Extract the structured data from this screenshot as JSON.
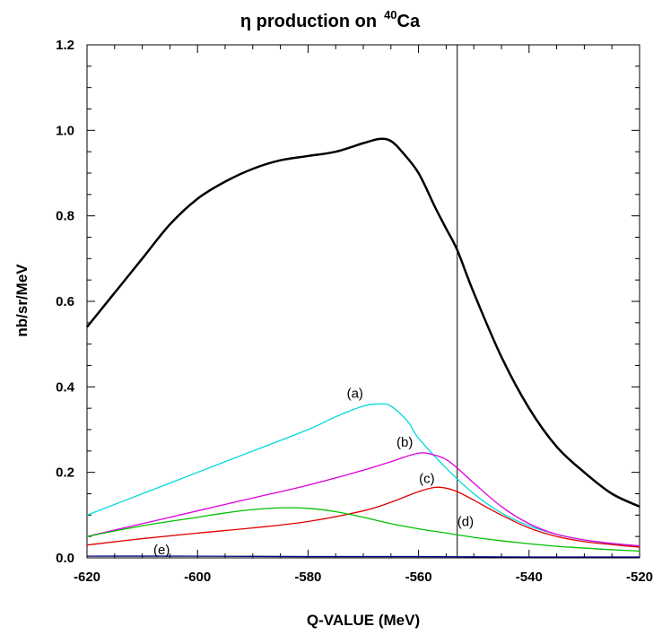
{
  "chart_data": {
    "type": "line",
    "title": {
      "prefix": "η production on",
      "superscript": "40",
      "nucleus": "Ca"
    },
    "xlabel": "Q-VALUE (MeV)",
    "ylabel": "nb/sr/MeV",
    "xlim": [
      -620,
      -520
    ],
    "ylim": [
      0,
      1.2
    ],
    "xticks": [
      -620,
      -600,
      -580,
      -560,
      -540,
      -520
    ],
    "xtick_labels": [
      "-620",
      "-600",
      "-580",
      "-560",
      "-540",
      "-520"
    ],
    "yticks": [
      0,
      0.2,
      0.4,
      0.6,
      0.8,
      1.0,
      1.2
    ],
    "ytick_labels": [
      "0.0",
      "0.2",
      "0.4",
      "0.6",
      "0.8",
      "1.0",
      "1.2"
    ],
    "vertical_line_x": -553,
    "grid": false,
    "series": [
      {
        "key": "total",
        "label": "",
        "color": "#000000",
        "x": [
          -620,
          -615,
          -610,
          -605,
          -600,
          -595,
          -590,
          -585,
          -580,
          -575,
          -570,
          -567,
          -565,
          -563,
          -560,
          -557,
          -555,
          -553,
          -550,
          -545,
          -540,
          -535,
          -530,
          -525,
          -520
        ],
        "y": [
          0.54,
          0.62,
          0.7,
          0.78,
          0.84,
          0.88,
          0.91,
          0.93,
          0.94,
          0.95,
          0.97,
          0.98,
          0.975,
          0.95,
          0.9,
          0.82,
          0.77,
          0.72,
          0.62,
          0.47,
          0.35,
          0.26,
          0.2,
          0.15,
          0.12
        ]
      },
      {
        "key": "a",
        "label": "(a)",
        "color": "#00d8dc",
        "x": [
          -620,
          -610,
          -600,
          -590,
          -580,
          -575,
          -570,
          -567,
          -565,
          -562,
          -560,
          -555,
          -550,
          -545,
          -540,
          -535,
          -530,
          -525,
          -520
        ],
        "y": [
          0.1,
          0.15,
          0.2,
          0.25,
          0.3,
          0.33,
          0.355,
          0.36,
          0.355,
          0.32,
          0.28,
          0.21,
          0.15,
          0.105,
          0.075,
          0.055,
          0.042,
          0.033,
          0.026
        ]
      },
      {
        "key": "b",
        "label": "(b)",
        "color": "#dd00dd",
        "x": [
          -620,
          -610,
          -600,
          -590,
          -580,
          -570,
          -565,
          -560,
          -557,
          -555,
          -553,
          -550,
          -545,
          -540,
          -535,
          -530,
          -525,
          -520
        ],
        "y": [
          0.05,
          0.08,
          0.11,
          0.14,
          0.17,
          0.205,
          0.225,
          0.245,
          0.24,
          0.23,
          0.21,
          0.175,
          0.12,
          0.08,
          0.055,
          0.042,
          0.034,
          0.028
        ]
      },
      {
        "key": "c",
        "label": "(c)",
        "color": "#e00000",
        "x": [
          -620,
          -610,
          -600,
          -590,
          -580,
          -570,
          -565,
          -560,
          -557,
          -555,
          -553,
          -550,
          -545,
          -540,
          -535,
          -530,
          -525,
          -520
        ],
        "y": [
          0.03,
          0.045,
          0.058,
          0.07,
          0.085,
          0.11,
          0.13,
          0.155,
          0.165,
          0.163,
          0.155,
          0.135,
          0.1,
          0.07,
          0.05,
          0.038,
          0.031,
          0.025
        ]
      },
      {
        "key": "d",
        "label": "(d)",
        "color": "#00c000",
        "x": [
          -620,
          -610,
          -600,
          -595,
          -590,
          -585,
          -580,
          -575,
          -570,
          -565,
          -560,
          -555,
          -550,
          -545,
          -540,
          -535,
          -530,
          -525,
          -520
        ],
        "y": [
          0.05,
          0.075,
          0.095,
          0.105,
          0.113,
          0.117,
          0.116,
          0.108,
          0.095,
          0.08,
          0.068,
          0.058,
          0.048,
          0.04,
          0.033,
          0.027,
          0.023,
          0.019,
          0.016
        ]
      },
      {
        "key": "e",
        "label": "(e)",
        "color": "#000080",
        "x": [
          -620,
          -600,
          -580,
          -560,
          -540,
          -520
        ],
        "y": [
          0.004,
          0.004,
          0.003,
          0.003,
          0.002,
          0.002
        ]
      }
    ],
    "annotations": [
      {
        "text": "(a)",
        "x": -571.5,
        "y": 0.375
      },
      {
        "text": "(b)",
        "x": -562.5,
        "y": 0.26
      },
      {
        "text": "(c)",
        "x": -558.5,
        "y": 0.175
      },
      {
        "text": "(d)",
        "x": -551.5,
        "y": 0.075
      },
      {
        "text": "(e)",
        "x": -606.5,
        "y": 0.008
      }
    ]
  }
}
